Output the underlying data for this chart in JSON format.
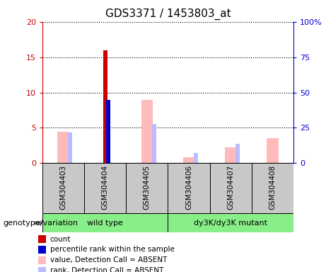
{
  "title": "GDS3371 / 1453803_at",
  "samples": [
    "GSM304403",
    "GSM304404",
    "GSM304405",
    "GSM304406",
    "GSM304407",
    "GSM304408"
  ],
  "groups": [
    {
      "label": "wild type",
      "indices": [
        0,
        1,
        2
      ],
      "color": "#88ee88"
    },
    {
      "label": "dy3K/dy3K mutant",
      "indices": [
        3,
        4,
        5
      ],
      "color": "#88ee88"
    }
  ],
  "count_values": [
    0,
    16.0,
    0,
    0,
    0,
    0
  ],
  "rank_values": [
    0,
    9.0,
    0,
    0,
    0,
    0
  ],
  "value_absent": [
    4.4,
    0,
    9.0,
    0.8,
    2.2,
    3.5
  ],
  "rank_absent": [
    4.3,
    0,
    5.5,
    1.4,
    2.7,
    0
  ],
  "ylim_left": [
    0,
    20
  ],
  "ylim_right": [
    0,
    100
  ],
  "yticks_left": [
    0,
    5,
    10,
    15,
    20
  ],
  "ytick_labels_left": [
    "0",
    "5",
    "10",
    "15",
    "20"
  ],
  "ytick_labels_right": [
    "0",
    "25",
    "50",
    "75",
    "100%"
  ],
  "left_axis_color": "#cc0000",
  "right_axis_color": "#0000cc",
  "count_color": "#cc0000",
  "rank_color": "#0000cc",
  "value_absent_color": "#ffbbbb",
  "rank_absent_color": "#bbbbff",
  "legend_items": [
    {
      "color": "#cc0000",
      "label": "count"
    },
    {
      "color": "#0000cc",
      "label": "percentile rank within the sample"
    },
    {
      "color": "#ffbbbb",
      "label": "value, Detection Call = ABSENT"
    },
    {
      "color": "#bbbbff",
      "label": "rank, Detection Call = ABSENT"
    }
  ],
  "group_label_text": "genotype/variation",
  "bg_color": "#ffffff",
  "label_area_color": "#c8c8c8"
}
